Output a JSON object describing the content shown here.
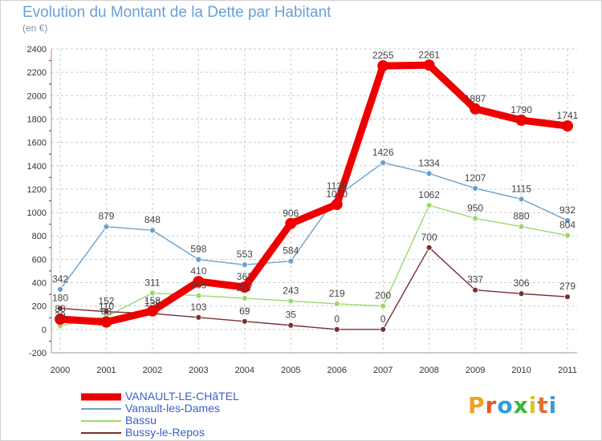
{
  "title": "Evolution du Montant de la Dette par Habitant",
  "subtitle": "(en €)",
  "logo": {
    "letters": [
      "P",
      "r",
      "o",
      "x",
      "i",
      "t",
      "i"
    ],
    "colors": [
      "#f0a020",
      "#e05a1c",
      "#2aa0e0",
      "#38b838",
      "#e0c020",
      "#e07030",
      "#3a9ad8"
    ]
  },
  "chart_data": {
    "type": "line",
    "title": "Evolution du Montant de la Dette par Habitant",
    "subtitle": "(en €)",
    "xlabel": "",
    "ylabel": "",
    "x": [
      "2000",
      "2001",
      "2002",
      "2003",
      "2004",
      "2005",
      "2006",
      "2007",
      "2008",
      "2009",
      "2010",
      "2011"
    ],
    "ylim": [
      -200,
      2400
    ],
    "yticks": [
      -200,
      0,
      200,
      400,
      600,
      800,
      1000,
      1200,
      1400,
      1600,
      1800,
      2000,
      2200,
      2400
    ],
    "grid": true,
    "legend_position": "bottom-left",
    "series": [
      {
        "name": "VANAULT-LE-CHâTEL",
        "color": "#ee0000",
        "values": [
          88,
          63,
          158,
          410,
          362,
          906,
          1070,
          2255,
          2261,
          1887,
          1790,
          1741
        ]
      },
      {
        "name": "Vanault-les-Dames",
        "color": "#6aa0cc",
        "values": [
          342,
          879,
          848,
          598,
          553,
          584,
          1139,
          1426,
          1334,
          1207,
          1115,
          932
        ]
      },
      {
        "name": "Bassu",
        "color": "#9ad870",
        "values": [
          30,
          110,
          311,
          289,
          267,
          243,
          219,
          200,
          1062,
          950,
          880,
          804
        ]
      },
      {
        "name": "Bussy-le-Repos",
        "color": "#7a3030",
        "values": [
          180,
          152,
          136,
          103,
          69,
          35,
          0,
          0,
          700,
          337,
          306,
          279
        ]
      }
    ],
    "data_labels": [
      [
        "88",
        "63",
        "158",
        "410",
        "362",
        "906",
        "1070",
        "2255",
        "2261",
        "1887",
        "1790",
        "1741"
      ],
      [
        "342",
        "879",
        "848",
        "598",
        "553",
        "584",
        "1139",
        "1426",
        "1334",
        "1207",
        "1115",
        "932"
      ],
      [
        "30",
        "110",
        "311",
        "289",
        "267",
        "243",
        "219",
        "200",
        "1062",
        "950",
        "880",
        "804"
      ],
      [
        "180",
        "152",
        "136",
        "103",
        "69",
        "35",
        "0",
        "0",
        "700",
        "337",
        "306",
        "279"
      ]
    ]
  }
}
